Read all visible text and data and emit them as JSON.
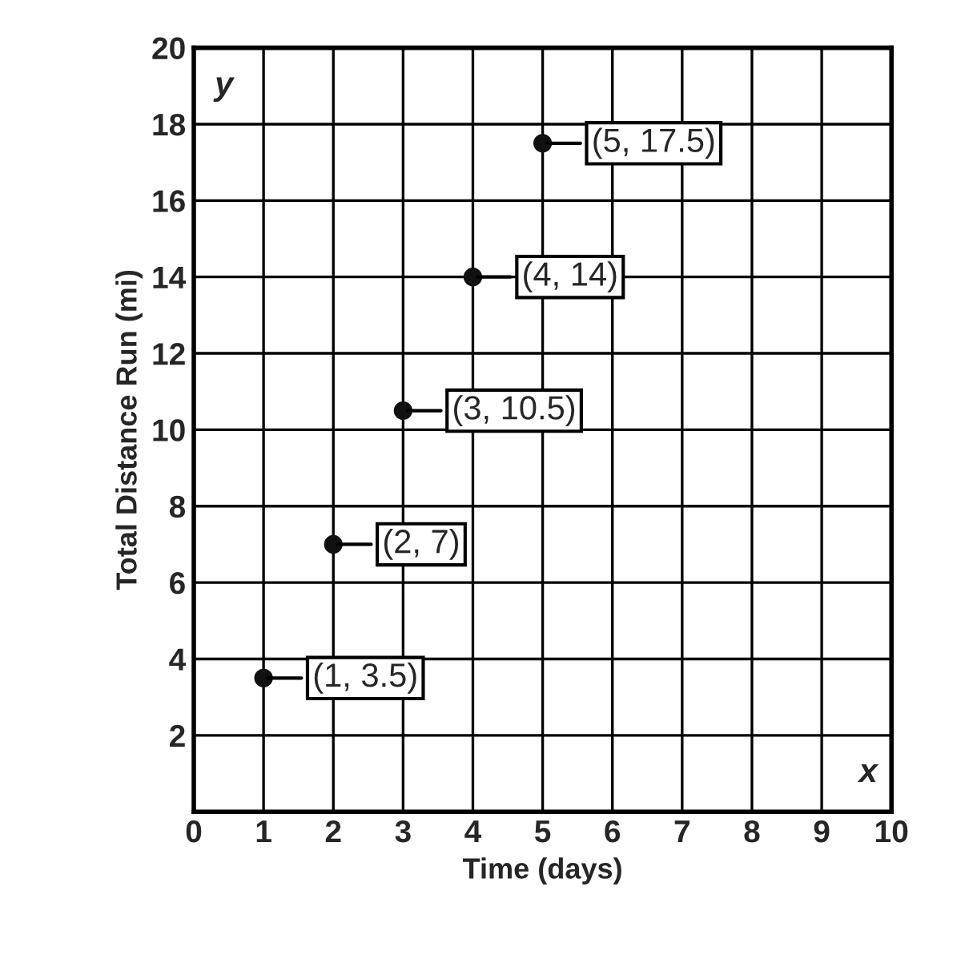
{
  "chart_data": {
    "type": "scatter",
    "xlabel": "Time (days)",
    "ylabel": "Total Distance Run (mi)",
    "x": [
      1,
      2,
      3,
      4,
      5
    ],
    "series": [
      {
        "color": "#111111",
        "values": [
          3.5,
          7,
          10.5,
          14,
          17.5
        ]
      }
    ],
    "xlim": [
      0,
      10
    ],
    "xticks": [
      0,
      1,
      2,
      3,
      4,
      5,
      6,
      7,
      8,
      9,
      10
    ],
    "ylim": [
      0,
      20
    ],
    "yticks": [
      2,
      4,
      6,
      8,
      10,
      12,
      14,
      16,
      18,
      20
    ],
    "grid": true,
    "marker": "circle",
    "annotations": [
      "y",
      "x",
      {
        "text": "(1, 3.5)",
        "x": 1,
        "y": 3.5
      },
      {
        "text": "(2, 7)",
        "x": 2,
        "y": 7
      },
      {
        "text": "(3, 10.5)",
        "x": 3,
        "y": 10.5
      },
      {
        "text": "(4, 14)",
        "x": 4,
        "y": 14
      },
      {
        "text": "(5, 17.5)",
        "x": 5,
        "y": 17.5
      }
    ]
  }
}
